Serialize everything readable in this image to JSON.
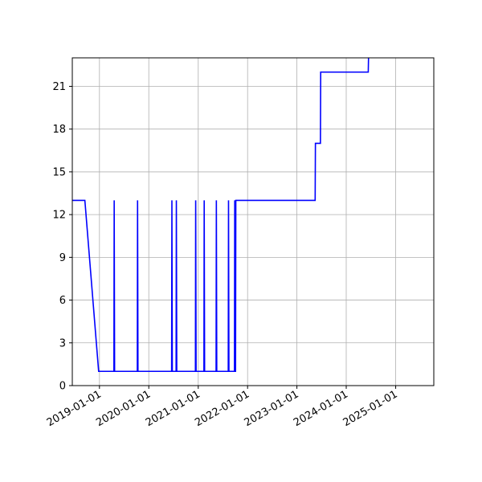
{
  "chart_data": {
    "type": "line",
    "title": "",
    "xlabel": "",
    "ylabel": "",
    "grid": true,
    "x_axis": {
      "type": "date",
      "range": [
        "2018-06-14",
        "2025-10-10"
      ],
      "ticks": [
        "2019-01-01",
        "2020-01-01",
        "2021-01-01",
        "2022-01-01",
        "2023-01-01",
        "2024-01-01",
        "2025-01-01"
      ]
    },
    "y_axis": {
      "range": [
        0,
        23
      ],
      "ticks": [
        0,
        3,
        6,
        9,
        12,
        15,
        18,
        21
      ]
    },
    "series": [
      {
        "color": "#0000ff",
        "points": [
          [
            "2018-06-14",
            13
          ],
          [
            "2018-09-15",
            13
          ],
          [
            "2018-12-26",
            1
          ],
          [
            "2019-04-18",
            1
          ],
          [
            "2019-04-20",
            13
          ],
          [
            "2019-04-23",
            1
          ],
          [
            "2019-10-08",
            1
          ],
          [
            "2019-10-10",
            13
          ],
          [
            "2019-10-13",
            1
          ],
          [
            "2020-06-18",
            1
          ],
          [
            "2020-06-20",
            13
          ],
          [
            "2020-06-23",
            1
          ],
          [
            "2020-07-21",
            1
          ],
          [
            "2020-07-23",
            13
          ],
          [
            "2020-07-26",
            1
          ],
          [
            "2020-12-11",
            1
          ],
          [
            "2020-12-13",
            13
          ],
          [
            "2020-12-16",
            1
          ],
          [
            "2021-02-12",
            1
          ],
          [
            "2021-02-14",
            13
          ],
          [
            "2021-02-17",
            1
          ],
          [
            "2021-05-13",
            1
          ],
          [
            "2021-05-15",
            13
          ],
          [
            "2021-05-18",
            1
          ],
          [
            "2021-08-11",
            1
          ],
          [
            "2021-08-13",
            13
          ],
          [
            "2021-08-16",
            1
          ],
          [
            "2021-09-26",
            1
          ],
          [
            "2021-09-28",
            13
          ],
          [
            "2021-10-01",
            1
          ],
          [
            "2021-10-04",
            1
          ],
          [
            "2021-10-06",
            13
          ],
          [
            "2023-05-16",
            13
          ],
          [
            "2023-05-18",
            17
          ],
          [
            "2023-06-24",
            17
          ],
          [
            "2023-06-26",
            22
          ],
          [
            "2024-06-12",
            22
          ],
          [
            "2024-06-14",
            23
          ]
        ]
      }
    ]
  }
}
